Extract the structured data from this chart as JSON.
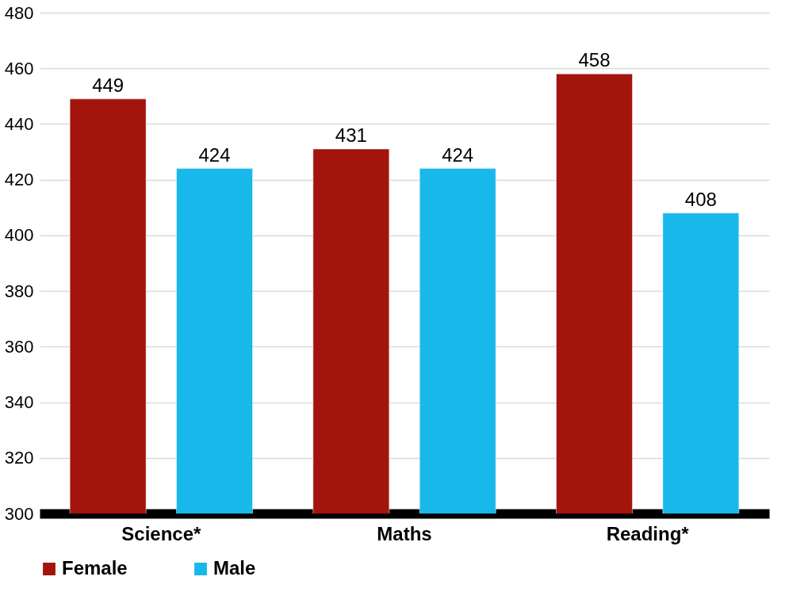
{
  "chart_data": {
    "type": "bar",
    "categories": [
      "Science*",
      "Maths",
      "Reading*"
    ],
    "series": [
      {
        "name": "Female",
        "color": "#a3140c",
        "values": [
          449,
          431,
          458
        ]
      },
      {
        "name": "Male",
        "color": "#18b8ea",
        "values": [
          424,
          424,
          408
        ]
      }
    ],
    "ylim": [
      300,
      480
    ],
    "yticks": [
      300,
      320,
      340,
      360,
      380,
      400,
      420,
      440,
      460,
      480
    ],
    "grid": "y",
    "legend": "bottom",
    "data_labels": true
  }
}
